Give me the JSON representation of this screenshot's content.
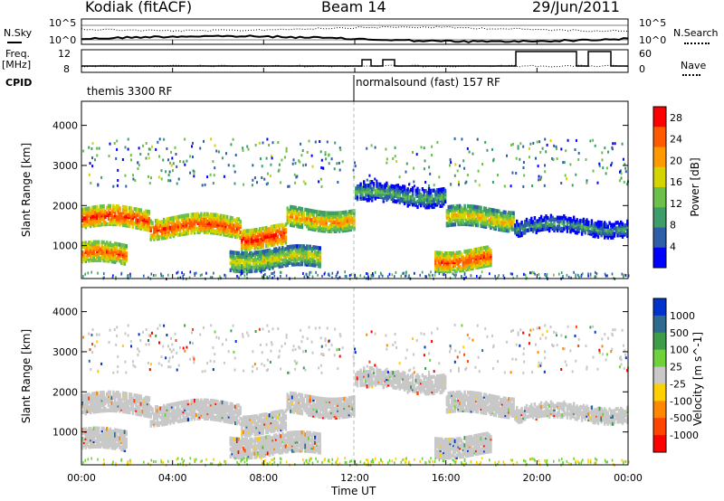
{
  "header": {
    "station": "Kodiak (fitACF)",
    "beam": "Beam 14",
    "date": "29/Jun/2011"
  },
  "top_panels": {
    "nsky_label": "N.Sky",
    "freq_label": "Freq.",
    "freq_unit": "[MHz]",
    "cpid_label": "CPID",
    "nsearch_label": "N.Search",
    "nave_label": "Nave",
    "noise_ticks_left": [
      "10^5",
      "10^0"
    ],
    "noise_ticks_right": [
      "10^5",
      "10^0"
    ],
    "freq_ticks": [
      "12",
      "8"
    ],
    "nave_ticks": [
      "60",
      "0"
    ],
    "cpid_modes": [
      {
        "label": "themis 3300 RF",
        "start_hour": 0
      },
      {
        "label": "normalsound (fast) 157 RF",
        "start_hour": 12
      }
    ]
  },
  "colors": {
    "power_scale": [
      "#0000ff",
      "#2d5fa8",
      "#3f9d6a",
      "#6cc04a",
      "#d4d400",
      "#ff9900",
      "#ff5a00",
      "#ff0000"
    ],
    "velocity_scale": [
      "#0033cc",
      "#2f6a8f",
      "#3f9d4a",
      "#6fd23a",
      "#c8c8c8",
      "#ffd000",
      "#ff8800",
      "#ff4400",
      "#ff0000"
    ],
    "ground_scatter": "#c8c8c8"
  },
  "chart_data": [
    {
      "type": "heatmap",
      "title": "",
      "xlabel": "Time UT",
      "ylabel": "Slant Range [km]",
      "xlim": [
        0,
        24
      ],
      "ylim": [
        180,
        4600
      ],
      "x_ticks": [
        "00:00",
        "04:00",
        "08:00",
        "12:00",
        "16:00",
        "20:00",
        "00:00"
      ],
      "y_ticks": [
        1000,
        2000,
        3000,
        4000
      ],
      "colorbar_label": "Power [dB]",
      "colorbar_ticks": [
        4,
        8,
        12,
        16,
        20,
        24,
        28
      ],
      "colorbar_range": [
        0,
        30
      ],
      "echo_bands": [
        {
          "t_start": 0.0,
          "t_end": 3.0,
          "range_km": 1700,
          "power_db": 27
        },
        {
          "t_start": 3.0,
          "t_end": 7.0,
          "range_km": 1500,
          "power_db": 26
        },
        {
          "t_start": 7.0,
          "t_end": 9.0,
          "range_km": 1250,
          "power_db": 28
        },
        {
          "t_start": 9.0,
          "t_end": 12.0,
          "range_km": 1700,
          "power_db": 22
        },
        {
          "t_start": 12.0,
          "t_end": 16.0,
          "range_km": 2300,
          "power_db": 12
        },
        {
          "t_start": 16.0,
          "t_end": 19.0,
          "range_km": 1700,
          "power_db": 20
        },
        {
          "t_start": 19.0,
          "t_end": 24.0,
          "range_km": 1500,
          "power_db": 10
        },
        {
          "t_start": 0.0,
          "t_end": 2.0,
          "range_km": 800,
          "power_db": 25
        },
        {
          "t_start": 6.5,
          "t_end": 10.5,
          "range_km": 700,
          "power_db": 18
        },
        {
          "t_start": 15.5,
          "t_end": 18.0,
          "range_km": 700,
          "power_db": 26
        }
      ]
    },
    {
      "type": "heatmap",
      "title": "",
      "xlabel": "Time UT",
      "ylabel": "Slant Range [km]",
      "xlim": [
        0,
        24
      ],
      "ylim": [
        180,
        4600
      ],
      "x_ticks": [
        "00:00",
        "04:00",
        "08:00",
        "12:00",
        "16:00",
        "20:00",
        "00:00"
      ],
      "y_ticks": [
        1000,
        2000,
        3000,
        4000
      ],
      "colorbar_label": "Velocity [m s^-1]",
      "colorbar_ticks": [
        "1000",
        "500",
        "100",
        "25",
        "-25",
        "-100",
        "-500",
        "-1000"
      ],
      "dominant_value": "ground scatter (|v| < 25 m/s)"
    }
  ]
}
